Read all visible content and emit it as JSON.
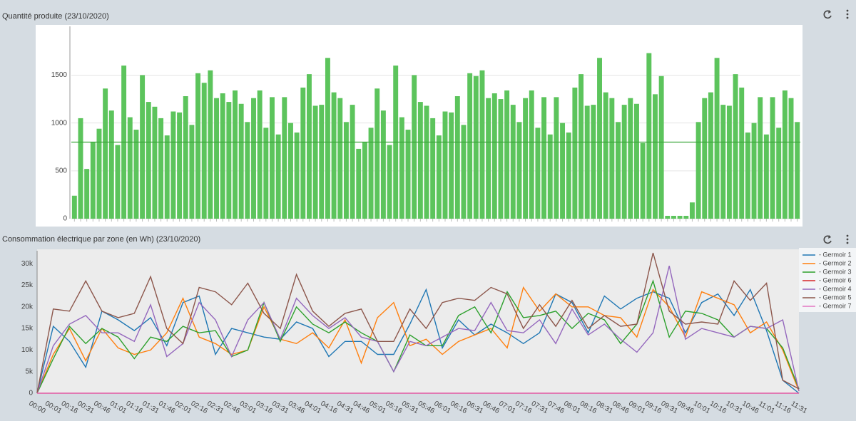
{
  "chart_data": [
    {
      "type": "bar",
      "title": "Quantité produite (23/10/2020)",
      "color": "#5cc45c",
      "threshold": 800,
      "threshold_color": "#3aa63a",
      "values": [
        240,
        1050,
        520,
        800,
        940,
        1360,
        1130,
        770,
        1600,
        1060,
        930,
        1500,
        1220,
        1170,
        1050,
        870,
        1120,
        1110,
        1280,
        980,
        1520,
        1420,
        1550,
        1260,
        1310,
        1220,
        1340,
        1200,
        1010,
        1260,
        1340,
        950,
        1270,
        880,
        1270,
        1000,
        900,
        1370,
        1510,
        1180,
        1190,
        1680,
        1320,
        1260,
        1010,
        1190,
        730,
        800,
        950,
        1360,
        1130,
        770,
        1600,
        1060,
        930,
        1500,
        1220,
        1180,
        1050,
        870,
        1120,
        1110,
        1280,
        980,
        1520,
        1490,
        1550,
        1260,
        1310,
        1250,
        1340,
        1190,
        1010,
        1260,
        1340,
        950,
        1270,
        880,
        1270,
        1000,
        900,
        1370,
        1510,
        1180,
        1190,
        1680,
        1320,
        1260,
        1010,
        1190,
        1260,
        1200,
        790,
        1730,
        1300,
        1490,
        30,
        30,
        30,
        30,
        170,
        1010,
        1260,
        1320,
        1680,
        1190,
        1180,
        1510,
        1370,
        900,
        1000,
        1270,
        880,
        1270,
        950,
        1340,
        1260,
        1010
      ],
      "ylim": [
        0,
        1950
      ],
      "yticks": [
        0,
        500,
        1000,
        1500
      ],
      "grid": true
    },
    {
      "type": "line",
      "title": "Consommation électrique par zone (en Wh) (23/10/2020)",
      "categories": [
        "00:00",
        "00:01",
        "00:16",
        "00:31",
        "00:46",
        "01:01",
        "01:16",
        "01:31",
        "01:46",
        "02:01",
        "02:16",
        "02:31",
        "02:46",
        "03:01",
        "03:16",
        "03:31",
        "03:46",
        "04:01",
        "04:16",
        "04:31",
        "04:46",
        "05:01",
        "05:16",
        "05:31",
        "05:46",
        "06:01",
        "06:16",
        "06:31",
        "06:46",
        "07:01",
        "07:16",
        "07:31",
        "07:46",
        "08:01",
        "08:16",
        "08:31",
        "08:46",
        "09:01",
        "09:16",
        "09:31",
        "09:46",
        "10:01",
        "10:16",
        "10:31",
        "10:46",
        "11:01",
        "11:16",
        "11:31"
      ],
      "ylim": [
        0,
        33000
      ],
      "yticks": [
        0,
        {
          "value": 5000,
          "label": "5k"
        },
        {
          "value": 10000,
          "label": "10k"
        },
        {
          "value": 15000,
          "label": "15k"
        },
        {
          "value": 20000,
          "label": "20k"
        },
        {
          "value": 25000,
          "label": "25k"
        },
        {
          "value": 30000,
          "label": "30k"
        }
      ],
      "series": [
        {
          "name": "- Germoir 1",
          "color": "#1f77b4",
          "values": [
            0,
            15500,
            12000,
            6000,
            19000,
            17000,
            14500,
            17500,
            11000,
            21000,
            22500,
            9000,
            15000,
            14000,
            13000,
            12500,
            16500,
            15000,
            8500,
            12000,
            12000,
            9000,
            9000,
            16000,
            24000,
            10500,
            17000,
            13500,
            16000,
            14000,
            11500,
            14000,
            23000,
            21000,
            14000,
            22500,
            19500,
            22000,
            23500,
            22000,
            14000,
            21000,
            23000,
            18000,
            24000,
            14500,
            3000,
            0
          ]
        },
        {
          "name": "- Germoir 2",
          "color": "#ff7f0e",
          "values": [
            0,
            9000,
            15000,
            7500,
            15000,
            10500,
            9000,
            10000,
            14000,
            22000,
            13000,
            11500,
            9000,
            10000,
            20000,
            12500,
            11500,
            14000,
            10500,
            17000,
            7000,
            17500,
            21000,
            11000,
            12500,
            9000,
            12000,
            13500,
            15000,
            10500,
            24500,
            19000,
            23000,
            20000,
            20000,
            18000,
            17500,
            13000,
            24000,
            20000,
            13000,
            23500,
            22000,
            20500,
            14000,
            16500,
            10000,
            500
          ]
        },
        {
          "name": "- Germoir 3",
          "color": "#2ca02c",
          "values": [
            0,
            8000,
            15500,
            11500,
            15000,
            13000,
            8000,
            13000,
            12000,
            15500,
            14000,
            14500,
            8500,
            10000,
            21000,
            12000,
            20000,
            16000,
            14000,
            16500,
            14000,
            12000,
            5000,
            13500,
            11000,
            11000,
            18000,
            20000,
            14000,
            23500,
            17500,
            18000,
            19000,
            15000,
            18500,
            17000,
            11500,
            16000,
            26000,
            13000,
            19000,
            18500,
            17000,
            13000,
            15500,
            15000,
            10500,
            1000
          ]
        },
        {
          "name": "- Germoir 6",
          "color": "#d62728",
          "values": [
            0,
            0,
            0,
            0,
            0,
            0,
            0,
            0,
            0,
            0,
            0,
            0,
            0,
            0,
            0,
            0,
            0,
            0,
            0,
            0,
            0,
            0,
            0,
            0,
            0,
            0,
            0,
            0,
            0,
            0,
            0,
            0,
            0,
            0,
            0,
            0,
            0,
            0,
            0,
            0,
            0,
            0,
            0,
            0,
            0,
            0,
            0,
            0
          ]
        },
        {
          "name": "- Germoir 4",
          "color": "#9467bd",
          "values": [
            0,
            11000,
            16000,
            18000,
            14000,
            14000,
            12000,
            20500,
            8500,
            11500,
            21000,
            17000,
            8500,
            17000,
            21000,
            12500,
            22000,
            18000,
            15000,
            17500,
            13000,
            12000,
            5000,
            12000,
            11000,
            13000,
            15000,
            14500,
            21000,
            14500,
            14000,
            17000,
            11500,
            19500,
            13500,
            16000,
            12500,
            9500,
            14000,
            29500,
            12500,
            15000,
            14000,
            13000,
            15500,
            15000,
            17000,
            500
          ]
        },
        {
          "name": "- Germoir 5",
          "color": "#8c564b",
          "values": [
            0,
            19500,
            19000,
            26000,
            19000,
            17500,
            18500,
            27000,
            15000,
            11500,
            24500,
            23500,
            20500,
            25500,
            18500,
            15000,
            27500,
            19000,
            15500,
            18500,
            19500,
            12000,
            12000,
            19500,
            15000,
            21000,
            22000,
            21500,
            24500,
            23000,
            15000,
            20500,
            15500,
            21500,
            15000,
            18000,
            15500,
            16000,
            32500,
            19000,
            16000,
            16500,
            16000,
            26000,
            21500,
            25500,
            3000,
            1000
          ]
        },
        {
          "name": "- Germoir 7",
          "color": "#e377c2",
          "values": [
            0,
            0,
            0,
            0,
            0,
            0,
            0,
            0,
            0,
            0,
            0,
            0,
            0,
            0,
            0,
            0,
            0,
            0,
            0,
            0,
            0,
            0,
            0,
            0,
            0,
            0,
            0,
            0,
            0,
            0,
            0,
            0,
            0,
            0,
            0,
            0,
            0,
            0,
            0,
            0,
            0,
            0,
            0,
            0,
            0,
            0,
            0,
            0
          ]
        }
      ],
      "grid": false
    }
  ]
}
